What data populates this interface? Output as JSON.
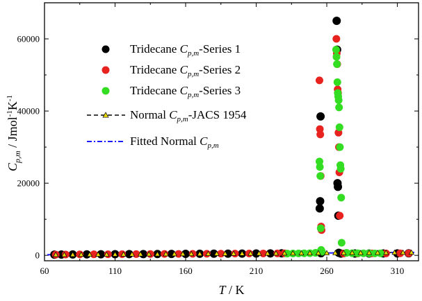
{
  "chart_data": {
    "type": "scatter",
    "xlabel": {
      "var": "T",
      "unit": " / K"
    },
    "ylabel": {
      "var": "C",
      "sub": "p,m",
      "unit_prefix": " / Jmol",
      "exp1": "-1",
      "unit_mid": "K",
      "exp2": "-1"
    },
    "xlim": [
      60,
      325
    ],
    "ylim": [
      -1500,
      70000
    ],
    "x_ticks": [
      60,
      110,
      160,
      210,
      260,
      310
    ],
    "y_ticks": [
      0,
      20000,
      40000,
      60000
    ],
    "grid": false,
    "legend_position": "upper-left",
    "series": [
      {
        "name": {
          "pre": "Tridecane ",
          "var": "C",
          "sub": "p,m",
          "post": "-Series 1"
        },
        "marker": "circle",
        "color": "#000000",
        "x": [
          67,
          72,
          80,
          90,
          100,
          110,
          120,
          130,
          140,
          150,
          160,
          170,
          180,
          190,
          200,
          210,
          220,
          228,
          255,
          255.3,
          255.6,
          255.9,
          267,
          267.3,
          267.6,
          267.9,
          268.2,
          268.5,
          270,
          280,
          290,
          300,
          310,
          318
        ],
        "y": [
          200,
          220,
          250,
          280,
          300,
          320,
          340,
          360,
          380,
          400,
          420,
          440,
          460,
          480,
          500,
          520,
          540,
          560,
          13000,
          15000,
          38500,
          600,
          65000,
          57000,
          20000,
          19000,
          11000,
          700,
          500,
          510,
          520,
          530,
          540,
          560
        ]
      },
      {
        "name": {
          "pre": "Tridecane ",
          "var": "C",
          "sub": "p,m",
          "post": "-Series 2"
        },
        "marker": "circle",
        "color": "#e8231f",
        "x": [
          68,
          75,
          85,
          95,
          105,
          115,
          125,
          135,
          145,
          155,
          165,
          175,
          185,
          195,
          205,
          215,
          225,
          230,
          254.8,
          255.1,
          255.4,
          255.7,
          256,
          256.3,
          266.8,
          267.1,
          267.4,
          267.7,
          268,
          268.3,
          268.6,
          268.9,
          269.2,
          272,
          282,
          292,
          302,
          312,
          318
        ],
        "y": [
          210,
          240,
          270,
          290,
          310,
          330,
          350,
          370,
          390,
          410,
          430,
          450,
          470,
          490,
          510,
          530,
          550,
          570,
          48500,
          35000,
          33500,
          22000,
          8000,
          7000,
          60000,
          56000,
          53000,
          46000,
          45000,
          34000,
          30000,
          23000,
          11000,
          520,
          530,
          540,
          550,
          560,
          570
        ]
      },
      {
        "name": {
          "pre": "Tridecane ",
          "var": "C",
          "sub": "p,m",
          "post": "-Series 3"
        },
        "marker": "circle",
        "color": "#33dd22",
        "x": [
          232,
          236,
          240,
          244,
          248,
          252,
          254.8,
          255.1,
          255.4,
          255.7,
          256,
          256.3,
          256.6,
          266.6,
          266.9,
          267.2,
          267.5,
          267.8,
          268.1,
          268.4,
          268.7,
          269,
          269.3,
          269.6,
          269.9,
          270.2,
          270.5,
          274,
          278,
          282,
          286,
          290,
          294,
          298
        ],
        "y": [
          500,
          520,
          540,
          560,
          600,
          700,
          26000,
          24500,
          22000,
          7500,
          1500,
          1200,
          1000,
          57000,
          55000,
          53000,
          48000,
          45000,
          44000,
          43000,
          41000,
          35500,
          30000,
          25000,
          24000,
          16000,
          3500,
          700,
          600,
          580,
          570,
          560,
          550,
          560
        ]
      },
      {
        "name": {
          "pre": "Normal ",
          "var": "C",
          "sub": "p,m",
          "post": "-JACS 1954"
        },
        "marker": "triangle",
        "color": "#e8d800",
        "line": "dashed",
        "line_color": "#000000",
        "x": [
          68,
          74,
          80,
          86,
          92,
          98,
          104,
          110,
          116,
          122,
          128,
          134,
          140,
          146,
          152,
          158,
          164,
          170,
          176,
          182,
          188,
          194,
          200,
          206,
          212,
          218,
          224,
          230,
          236,
          242,
          248,
          254,
          260,
          266,
          272,
          278,
          284,
          290,
          296,
          302,
          308,
          314,
          320
        ],
        "y": [
          190,
          205,
          220,
          235,
          250,
          265,
          280,
          295,
          310,
          325,
          340,
          355,
          370,
          385,
          400,
          415,
          430,
          445,
          460,
          475,
          490,
          505,
          520,
          535,
          550,
          565,
          580,
          595,
          610,
          625,
          640,
          655,
          670,
          685,
          700,
          715,
          730,
          745,
          760,
          775,
          790,
          805,
          820
        ]
      },
      {
        "name": {
          "pre": "Fitted Normal ",
          "var": "C",
          "sub": "p,m",
          "post": ""
        },
        "marker": "none",
        "color": "#1a1aff",
        "line": "dashdot",
        "x": [
          62,
          322
        ],
        "y": [
          180,
          820
        ]
      }
    ]
  }
}
